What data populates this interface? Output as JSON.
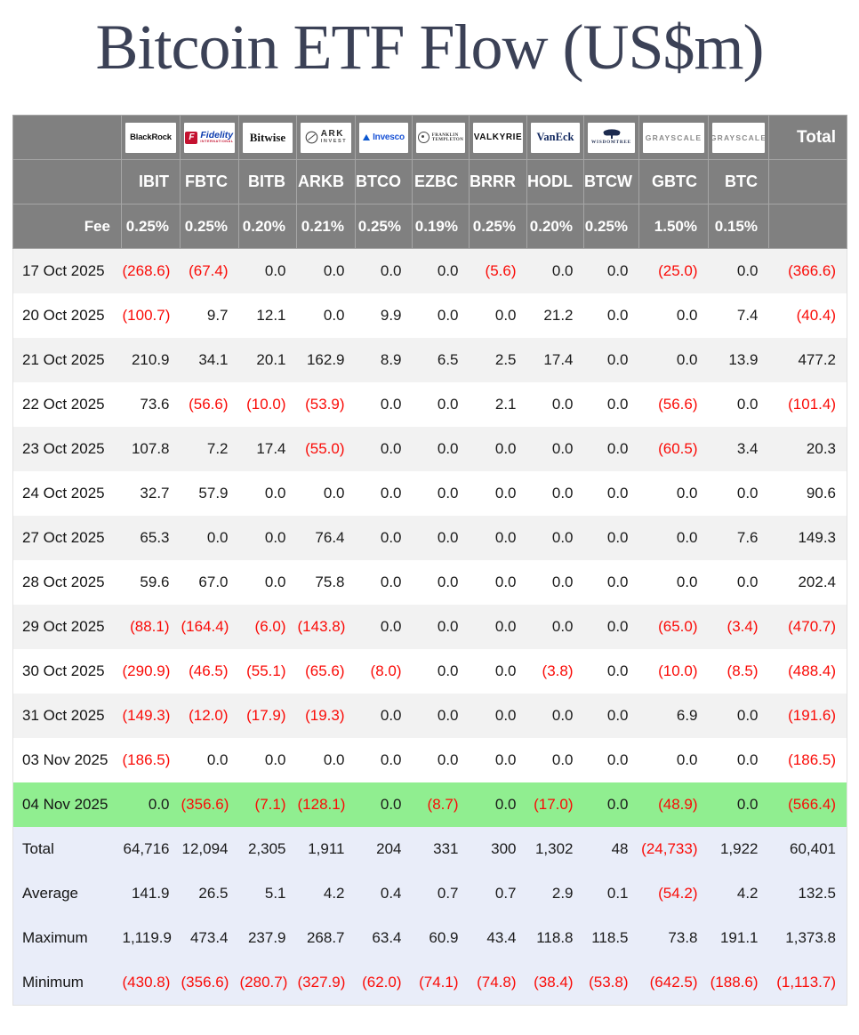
{
  "title": "Bitcoin ETF Flow (US$m)",
  "colors": {
    "header_bg": "#808080",
    "header_border": "#a6a6a6",
    "stripe_bg": "#f2f2f2",
    "highlight_green": "#90ee90",
    "summary_bg": "#e9edf9",
    "negative_red": "#fa0b07",
    "title_navy": "#3b4156"
  },
  "table": {
    "fee_label": "Fee",
    "total_label": "Total",
    "columns": [
      {
        "brand": "blackrock",
        "logo": [
          "BlackRock"
        ],
        "ticker": "IBIT",
        "fee": "0.25%"
      },
      {
        "brand": "fidelity",
        "logo": [
          "F",
          "Fidelity",
          "INTERNATIONAL"
        ],
        "ticker": "FBTC",
        "fee": "0.25%"
      },
      {
        "brand": "bitwise",
        "logo": [
          "Bitwise"
        ],
        "ticker": "BITB",
        "fee": "0.20%"
      },
      {
        "brand": "ark",
        "logo": [
          "ARK",
          "INVEST"
        ],
        "ticker": "ARKB",
        "fee": "0.21%"
      },
      {
        "brand": "invesco",
        "logo": [
          "Invesco"
        ],
        "ticker": "BTCO",
        "fee": "0.25%"
      },
      {
        "brand": "franklin",
        "logo": [
          "FRANKLIN",
          "TEMPLETON"
        ],
        "ticker": "EZBC",
        "fee": "0.19%"
      },
      {
        "brand": "valkyrie",
        "logo": [
          "VALKYRIE"
        ],
        "ticker": "BRRR",
        "fee": "0.25%"
      },
      {
        "brand": "vaneck",
        "logo": [
          "VanEck"
        ],
        "ticker": "HODL",
        "fee": "0.20%"
      },
      {
        "brand": "wisdomtree",
        "logo": [
          "WISDOMTREE"
        ],
        "ticker": "BTCW",
        "fee": "0.25%"
      },
      {
        "brand": "grayscale",
        "logo": [
          "GRAYSCALE"
        ],
        "ticker": "GBTC",
        "fee": "1.50%"
      },
      {
        "brand": "grayscale",
        "logo": [
          "GRAYSCALE"
        ],
        "ticker": "BTC",
        "fee": "0.15%"
      }
    ],
    "rows": [
      {
        "date": "17 Oct 2025",
        "values": [
          "(268.6)",
          "(67.4)",
          "0.0",
          "0.0",
          "0.0",
          "0.0",
          "(5.6)",
          "0.0",
          "0.0",
          "(25.0)",
          "0.0",
          "(366.6)"
        ],
        "highlight": false
      },
      {
        "date": "20 Oct 2025",
        "values": [
          "(100.7)",
          "9.7",
          "12.1",
          "0.0",
          "9.9",
          "0.0",
          "0.0",
          "21.2",
          "0.0",
          "0.0",
          "7.4",
          "(40.4)"
        ],
        "highlight": false
      },
      {
        "date": "21 Oct 2025",
        "values": [
          "210.9",
          "34.1",
          "20.1",
          "162.9",
          "8.9",
          "6.5",
          "2.5",
          "17.4",
          "0.0",
          "0.0",
          "13.9",
          "477.2"
        ],
        "highlight": false
      },
      {
        "date": "22 Oct 2025",
        "values": [
          "73.6",
          "(56.6)",
          "(10.0)",
          "(53.9)",
          "0.0",
          "0.0",
          "2.1",
          "0.0",
          "0.0",
          "(56.6)",
          "0.0",
          "(101.4)"
        ],
        "highlight": false
      },
      {
        "date": "23 Oct 2025",
        "values": [
          "107.8",
          "7.2",
          "17.4",
          "(55.0)",
          "0.0",
          "0.0",
          "0.0",
          "0.0",
          "0.0",
          "(60.5)",
          "3.4",
          "20.3"
        ],
        "highlight": false
      },
      {
        "date": "24 Oct 2025",
        "values": [
          "32.7",
          "57.9",
          "0.0",
          "0.0",
          "0.0",
          "0.0",
          "0.0",
          "0.0",
          "0.0",
          "0.0",
          "0.0",
          "90.6"
        ],
        "highlight": false
      },
      {
        "date": "27 Oct 2025",
        "values": [
          "65.3",
          "0.0",
          "0.0",
          "76.4",
          "0.0",
          "0.0",
          "0.0",
          "0.0",
          "0.0",
          "0.0",
          "7.6",
          "149.3"
        ],
        "highlight": false
      },
      {
        "date": "28 Oct 2025",
        "values": [
          "59.6",
          "67.0",
          "0.0",
          "75.8",
          "0.0",
          "0.0",
          "0.0",
          "0.0",
          "0.0",
          "0.0",
          "0.0",
          "202.4"
        ],
        "highlight": false
      },
      {
        "date": "29 Oct 2025",
        "values": [
          "(88.1)",
          "(164.4)",
          "(6.0)",
          "(143.8)",
          "0.0",
          "0.0",
          "0.0",
          "0.0",
          "0.0",
          "(65.0)",
          "(3.4)",
          "(470.7)"
        ],
        "highlight": false
      },
      {
        "date": "30 Oct 2025",
        "values": [
          "(290.9)",
          "(46.5)",
          "(55.1)",
          "(65.6)",
          "(8.0)",
          "0.0",
          "0.0",
          "(3.8)",
          "0.0",
          "(10.0)",
          "(8.5)",
          "(488.4)"
        ],
        "highlight": false
      },
      {
        "date": "31 Oct 2025",
        "values": [
          "(149.3)",
          "(12.0)",
          "(17.9)",
          "(19.3)",
          "0.0",
          "0.0",
          "0.0",
          "0.0",
          "0.0",
          "6.9",
          "0.0",
          "(191.6)"
        ],
        "highlight": false
      },
      {
        "date": "03 Nov 2025",
        "values": [
          "(186.5)",
          "0.0",
          "0.0",
          "0.0",
          "0.0",
          "0.0",
          "0.0",
          "0.0",
          "0.0",
          "0.0",
          "0.0",
          "(186.5)"
        ],
        "highlight": false
      },
      {
        "date": "04 Nov 2025",
        "values": [
          "0.0",
          "(356.6)",
          "(7.1)",
          "(128.1)",
          "0.0",
          "(8.7)",
          "0.0",
          "(17.0)",
          "0.0",
          "(48.9)",
          "0.0",
          "(566.4)"
        ],
        "highlight": true
      }
    ],
    "summary_rows": [
      {
        "label": "Total",
        "values": [
          "64,716",
          "12,094",
          "2,305",
          "1,911",
          "204",
          "331",
          "300",
          "1,302",
          "48",
          "(24,733)",
          "1,922",
          "60,401"
        ]
      },
      {
        "label": "Average",
        "values": [
          "141.9",
          "26.5",
          "5.1",
          "4.2",
          "0.4",
          "0.7",
          "0.7",
          "2.9",
          "0.1",
          "(54.2)",
          "4.2",
          "132.5"
        ]
      },
      {
        "label": "Maximum",
        "values": [
          "1,119.9",
          "473.4",
          "237.9",
          "268.7",
          "63.4",
          "60.9",
          "43.4",
          "118.8",
          "118.5",
          "73.8",
          "191.1",
          "1,373.8"
        ]
      },
      {
        "label": "Minimum",
        "values": [
          "(430.8)",
          "(356.6)",
          "(280.7)",
          "(327.9)",
          "(62.0)",
          "(74.1)",
          "(74.8)",
          "(38.4)",
          "(53.8)",
          "(642.5)",
          "(188.6)",
          "(1,113.7)"
        ]
      }
    ]
  },
  "chart_data": {
    "type": "table",
    "title": "Bitcoin ETF Flow (US$m)",
    "columns": [
      "IBIT",
      "FBTC",
      "BITB",
      "ARKB",
      "BTCO",
      "EZBC",
      "BRRR",
      "HODL",
      "BTCW",
      "GBTC",
      "BTC",
      "Total"
    ],
    "providers": [
      "BlackRock",
      "Fidelity",
      "Bitwise",
      "ARK Invest",
      "Invesco",
      "Franklin Templeton",
      "Valkyrie",
      "VanEck",
      "WisdomTree",
      "Grayscale",
      "Grayscale"
    ],
    "fees_pct": [
      0.25,
      0.25,
      0.2,
      0.21,
      0.25,
      0.19,
      0.25,
      0.2,
      0.25,
      1.5,
      0.15
    ],
    "rows": [
      {
        "date": "17 Oct 2025",
        "values": [
          -268.6,
          -67.4,
          0.0,
          0.0,
          0.0,
          0.0,
          -5.6,
          0.0,
          0.0,
          -25.0,
          0.0
        ],
        "total": -366.6
      },
      {
        "date": "20 Oct 2025",
        "values": [
          -100.7,
          9.7,
          12.1,
          0.0,
          9.9,
          0.0,
          0.0,
          21.2,
          0.0,
          0.0,
          7.4
        ],
        "total": -40.4
      },
      {
        "date": "21 Oct 2025",
        "values": [
          210.9,
          34.1,
          20.1,
          162.9,
          8.9,
          6.5,
          2.5,
          17.4,
          0.0,
          0.0,
          13.9
        ],
        "total": 477.2
      },
      {
        "date": "22 Oct 2025",
        "values": [
          73.6,
          -56.6,
          -10.0,
          -53.9,
          0.0,
          0.0,
          2.1,
          0.0,
          0.0,
          -56.6,
          0.0
        ],
        "total": -101.4
      },
      {
        "date": "23 Oct 2025",
        "values": [
          107.8,
          7.2,
          17.4,
          -55.0,
          0.0,
          0.0,
          0.0,
          0.0,
          0.0,
          -60.5,
          3.4
        ],
        "total": 20.3
      },
      {
        "date": "24 Oct 2025",
        "values": [
          32.7,
          57.9,
          0.0,
          0.0,
          0.0,
          0.0,
          0.0,
          0.0,
          0.0,
          0.0,
          0.0
        ],
        "total": 90.6
      },
      {
        "date": "27 Oct 2025",
        "values": [
          65.3,
          0.0,
          0.0,
          76.4,
          0.0,
          0.0,
          0.0,
          0.0,
          0.0,
          0.0,
          7.6
        ],
        "total": 149.3
      },
      {
        "date": "28 Oct 2025",
        "values": [
          59.6,
          67.0,
          0.0,
          75.8,
          0.0,
          0.0,
          0.0,
          0.0,
          0.0,
          0.0,
          0.0
        ],
        "total": 202.4
      },
      {
        "date": "29 Oct 2025",
        "values": [
          -88.1,
          -164.4,
          -6.0,
          -143.8,
          0.0,
          0.0,
          0.0,
          0.0,
          0.0,
          -65.0,
          -3.4
        ],
        "total": -470.7
      },
      {
        "date": "30 Oct 2025",
        "values": [
          -290.9,
          -46.5,
          -55.1,
          -65.6,
          -8.0,
          0.0,
          0.0,
          -3.8,
          0.0,
          -10.0,
          -8.5
        ],
        "total": -488.4
      },
      {
        "date": "31 Oct 2025",
        "values": [
          -149.3,
          -12.0,
          -17.9,
          -19.3,
          0.0,
          0.0,
          0.0,
          0.0,
          0.0,
          6.9,
          0.0
        ],
        "total": -191.6
      },
      {
        "date": "03 Nov 2025",
        "values": [
          -186.5,
          0.0,
          0.0,
          0.0,
          0.0,
          0.0,
          0.0,
          0.0,
          0.0,
          0.0,
          0.0
        ],
        "total": -186.5
      },
      {
        "date": "04 Nov 2025",
        "values": [
          0.0,
          -356.6,
          -7.1,
          -128.1,
          0.0,
          -8.7,
          0.0,
          -17.0,
          0.0,
          -48.9,
          0.0
        ],
        "total": -566.4
      }
    ],
    "summary": {
      "Total": {
        "values": [
          64716,
          12094,
          2305,
          1911,
          204,
          331,
          300,
          1302,
          48,
          -24733,
          1922
        ],
        "total": 60401
      },
      "Average": {
        "values": [
          141.9,
          26.5,
          5.1,
          4.2,
          0.4,
          0.7,
          0.7,
          2.9,
          0.1,
          -54.2,
          4.2
        ],
        "total": 132.5
      },
      "Maximum": {
        "values": [
          1119.9,
          473.4,
          237.9,
          268.7,
          63.4,
          60.9,
          43.4,
          118.8,
          118.5,
          73.8,
          191.1
        ],
        "total": 1373.8
      },
      "Minimum": {
        "values": [
          -430.8,
          -356.6,
          -280.7,
          -327.9,
          -62.0,
          -74.1,
          -74.8,
          -38.4,
          -53.8,
          -642.5,
          -188.6
        ],
        "total": -1113.7
      }
    },
    "layout_hints": {
      "negative_format": "parentheses-red",
      "highlighted_row": "04 Nov 2025",
      "row_striping": true
    }
  }
}
